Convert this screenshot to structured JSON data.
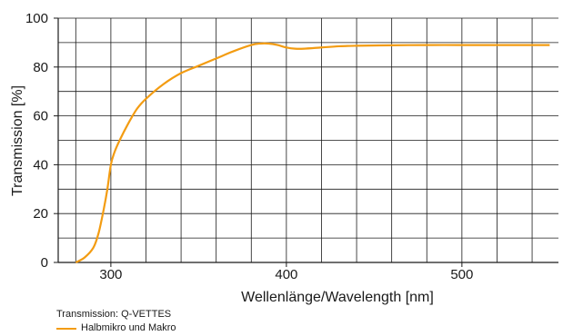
{
  "colors": {
    "line": "#f39c12",
    "grid": "#1a1a1a",
    "frame": "#1a1a1a"
  },
  "legend": {
    "title": "Transmission: Q-VETTES",
    "entry": "Halbmikro und Makro"
  },
  "chart_data": {
    "type": "line",
    "title": "",
    "xlabel": "Wellenlänge/Wavelength [nm]",
    "ylabel": "Transmission [%]",
    "xlim": [
      270,
      555
    ],
    "ylim": [
      0,
      100
    ],
    "xticks": [
      300,
      400,
      500
    ],
    "yticks": [
      0,
      20,
      40,
      60,
      80,
      100
    ],
    "grid": true,
    "legend_position": "bottom-left",
    "series": [
      {
        "name": "Halbmikro und Makro",
        "x": [
          280,
          285,
          290,
          293,
          296,
          298,
          300,
          302,
          305,
          310,
          315,
          320,
          330,
          340,
          350,
          360,
          370,
          380,
          385,
          390,
          395,
          400,
          405,
          410,
          420,
          430,
          440,
          460,
          480,
          500,
          520,
          540,
          550
        ],
        "y": [
          0,
          2,
          6,
          12,
          22,
          30,
          40,
          45,
          50,
          57,
          63,
          67,
          73,
          77.5,
          80.5,
          83.5,
          86.5,
          89,
          89.6,
          89.6,
          89,
          88,
          87.5,
          87.5,
          88,
          88.5,
          88.7,
          88.9,
          89,
          89,
          89,
          89,
          89
        ]
      }
    ]
  }
}
